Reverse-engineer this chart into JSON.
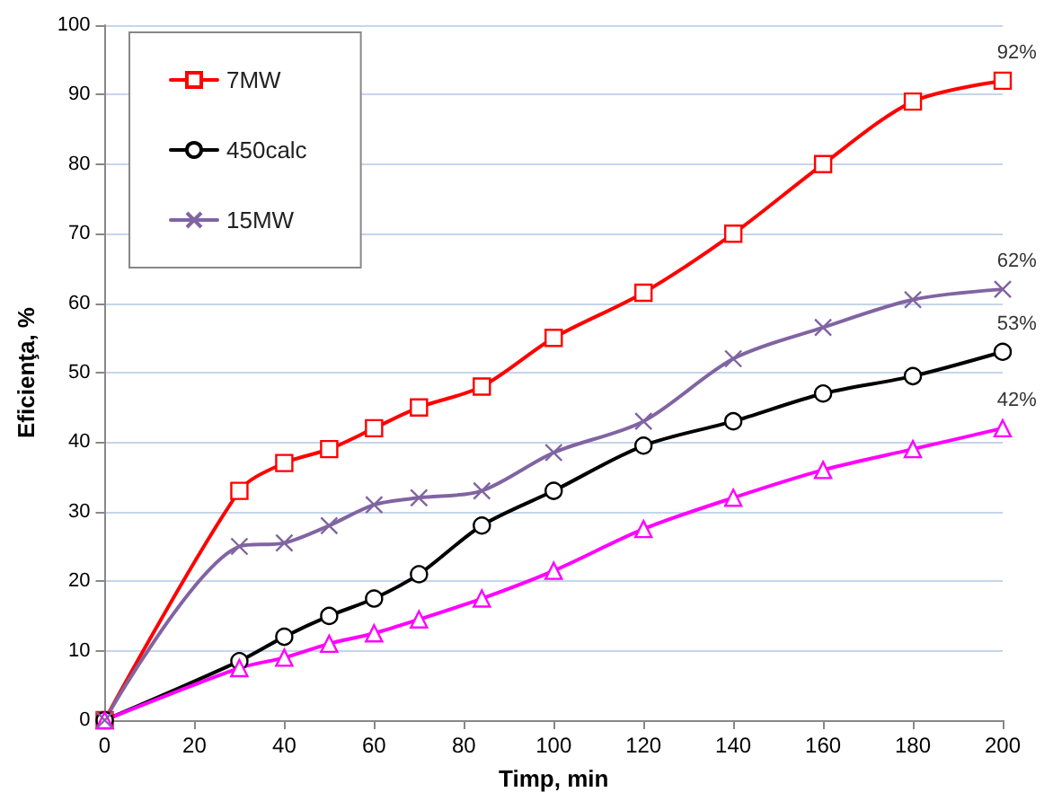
{
  "chart_data": {
    "type": "line",
    "xlabel": "Timp, min",
    "ylabel": "Eficienţa, %",
    "x": [
      0,
      30,
      40,
      50,
      60,
      70,
      84,
      100,
      120,
      140,
      160,
      180,
      200
    ],
    "series": [
      {
        "name": "7MW",
        "color": "#ff0000",
        "marker": "square",
        "values": [
          0,
          33,
          37,
          39,
          42,
          45,
          48,
          55,
          61.5,
          70,
          80,
          89,
          92
        ],
        "value_labels": [
          null,
          null,
          null,
          null,
          null,
          null,
          null,
          null,
          null,
          null,
          null,
          null,
          "92%"
        ]
      },
      {
        "name": "450calc",
        "color": "#000000",
        "marker": "circle",
        "values": [
          0,
          8.5,
          12,
          15,
          17.5,
          21,
          28,
          33,
          39.5,
          43,
          47,
          49.5,
          53
        ],
        "value_labels": [
          null,
          null,
          null,
          null,
          null,
          null,
          null,
          null,
          null,
          null,
          null,
          null,
          "53%"
        ]
      },
      {
        "color": "#ff00ff",
        "marker": "triangle",
        "values": [
          0,
          7.5,
          9,
          11,
          12.5,
          14.5,
          17.5,
          21.5,
          27.5,
          32,
          36,
          39,
          42
        ],
        "value_labels": [
          null,
          null,
          null,
          null,
          null,
          null,
          null,
          null,
          null,
          null,
          null,
          null,
          "42%"
        ]
      },
      {
        "name": "15MW",
        "color": "#8064a2",
        "marker": "cross",
        "values": [
          0,
          25,
          25.5,
          28,
          31,
          32,
          33,
          38.5,
          43,
          52,
          56.5,
          60.5,
          62
        ],
        "value_labels": [
          null,
          null,
          null,
          null,
          null,
          null,
          null,
          null,
          null,
          null,
          null,
          null,
          "62%"
        ]
      }
    ],
    "xlim": [
      0,
      200
    ],
    "xticks": [
      0,
      20,
      40,
      60,
      80,
      100,
      120,
      140,
      160,
      180,
      200
    ],
    "ylim": [
      0,
      100
    ],
    "yticks": [
      0,
      10,
      20,
      30,
      40,
      50,
      60,
      70,
      80,
      90,
      100
    ],
    "grid": "y",
    "legend": "top left"
  }
}
